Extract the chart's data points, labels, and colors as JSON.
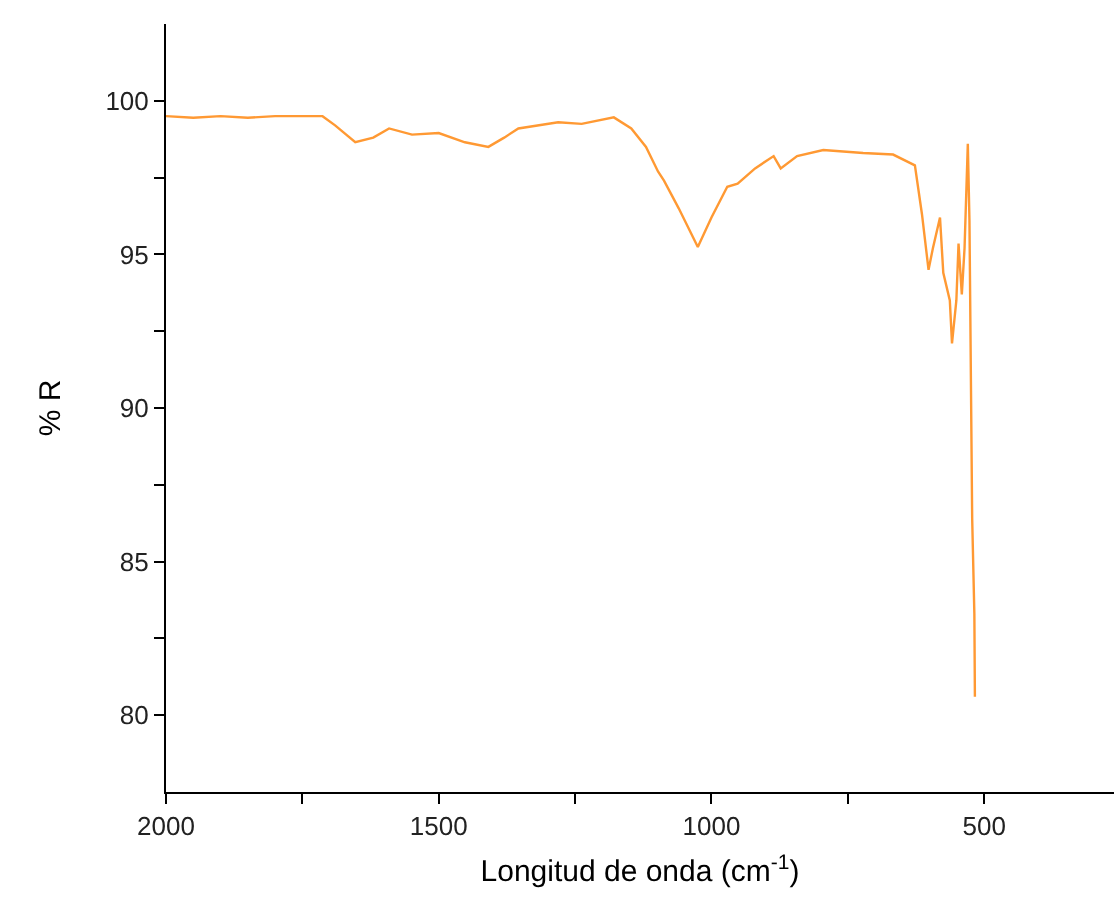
{
  "chart_data": {
    "type": "line",
    "xlabel": "Longitud de onda (cm$^{-1}$)",
    "ylabel": "% R",
    "xlim": [
      2000,
      262
    ],
    "ylim": [
      77.5,
      102.5
    ],
    "xticks": [
      2000,
      {
        "value": 1750,
        "label": null
      },
      1500,
      {
        "value": 1250,
        "label": null
      },
      1000,
      {
        "value": 750,
        "label": null
      },
      500
    ],
    "yticks": [
      80,
      {
        "value": 82.5,
        "label": null
      },
      85,
      {
        "value": 87.5,
        "label": null
      },
      90,
      {
        "value": 92.5,
        "label": null
      },
      95,
      {
        "value": 97.5,
        "label": null
      },
      100
    ],
    "marker": "none",
    "line_style": "solid",
    "series": [
      {
        "color": "#ff9933",
        "x": [
          2000,
          1950,
          1900,
          1850,
          1800,
          1750,
          1713,
          1690,
          1653,
          1620,
          1591,
          1549,
          1500,
          1452,
          1409,
          1380,
          1354,
          1281,
          1238,
          1179,
          1147,
          1120,
          1098,
          1087,
          1060,
          1025,
          1000,
          971,
          952,
          920,
          886,
          873,
          843,
          795,
          722,
          667,
          627,
          614,
          602,
          594,
          581,
          575,
          563,
          559,
          551,
          547,
          541,
          536,
          530,
          527,
          522,
          518,
          517
        ],
        "values": [
          99.5,
          99.45,
          99.5,
          99.45,
          99.5,
          99.5,
          99.5,
          99.2,
          98.65,
          98.8,
          99.1,
          98.9,
          98.95,
          98.65,
          98.5,
          98.8,
          99.1,
          99.3,
          99.25,
          99.46,
          99.1,
          98.5,
          97.7,
          97.4,
          96.5,
          95.24,
          96.2,
          97.2,
          97.3,
          97.8,
          98.2,
          97.8,
          98.2,
          98.4,
          98.3,
          98.25,
          97.9,
          96.3,
          94.5,
          95.2,
          96.2,
          94.4,
          93.5,
          92.1,
          93.5,
          95.35,
          93.7,
          95.2,
          98.6,
          96.1,
          86.4,
          83.3,
          80.6
        ]
      }
    ]
  }
}
